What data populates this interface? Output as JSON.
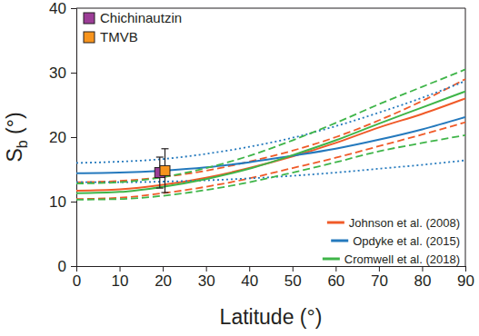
{
  "chart_data": {
    "type": "line",
    "x_label": "Latitude (°)",
    "y_label": "Sb (°)",
    "x": [
      0,
      10,
      20,
      30,
      40,
      50,
      60,
      70,
      80,
      90
    ],
    "xlim": [
      0,
      90
    ],
    "xticks": [
      0,
      10,
      20,
      30,
      40,
      50,
      60,
      70,
      80,
      90
    ],
    "ylim": [
      0,
      40
    ],
    "yticks": [
      0,
      10,
      20,
      30,
      40
    ],
    "grid": false,
    "legend": "lower right",
    "series": [
      {
        "name": "Johnson et al. (2008)",
        "color": "#f05a28",
        "line_style": "solid",
        "values": [
          11.7,
          11.9,
          12.6,
          13.7,
          15.2,
          17.0,
          19.1,
          21.5,
          23.6,
          26.0
        ]
      },
      {
        "color": "#f05a28",
        "line_style": "dashed",
        "values": [
          13.0,
          13.2,
          13.8,
          14.8,
          16.2,
          17.9,
          20.0,
          22.6,
          25.6,
          29.0
        ]
      },
      {
        "color": "#f05a28",
        "line_style": "dashed",
        "values": [
          10.4,
          10.6,
          11.3,
          12.3,
          13.6,
          15.2,
          16.8,
          18.6,
          20.4,
          22.3
        ]
      },
      {
        "name": "Opdyke et al. (2015)",
        "color": "#2479bd",
        "line_style": "solid",
        "values": [
          14.4,
          14.5,
          14.8,
          15.3,
          16.1,
          17.1,
          18.2,
          19.6,
          21.2,
          23.1
        ]
      },
      {
        "color": "#2479bd",
        "line_style": "dotted",
        "values": [
          16.0,
          16.2,
          16.6,
          17.4,
          18.5,
          19.9,
          21.7,
          23.8,
          26.1,
          28.7
        ]
      },
      {
        "color": "#2479bd",
        "line_style": "dotted",
        "values": [
          13.0,
          13.0,
          13.1,
          13.3,
          13.6,
          14.0,
          14.5,
          15.1,
          15.7,
          16.4
        ]
      },
      {
        "name": "Cromwell et al. (2018)",
        "color": "#3fb549",
        "line_style": "solid",
        "values": [
          11.3,
          11.5,
          12.3,
          13.5,
          15.1,
          17.2,
          19.5,
          22.1,
          24.6,
          27.1
        ]
      },
      {
        "color": "#3fb549",
        "line_style": "dashed",
        "values": [
          12.8,
          13.0,
          13.8,
          15.2,
          17.1,
          19.5,
          22.2,
          25.1,
          27.8,
          30.5
        ]
      },
      {
        "color": "#3fb549",
        "line_style": "dashed",
        "values": [
          10.3,
          10.4,
          10.9,
          11.8,
          13.0,
          14.5,
          16.1,
          17.8,
          19.1,
          20.3
        ]
      },
      {
        "name": "Chichinautzin",
        "type": "scatter",
        "marker": "square",
        "color": "#9c3d97",
        "x": [
          19.3
        ],
        "values": [
          14.5
        ],
        "errors": [
          2.4
        ]
      },
      {
        "name": "TMVB",
        "type": "scatter",
        "marker": "square",
        "color": "#f7941d",
        "x": [
          20.5
        ],
        "values": [
          14.8
        ],
        "errors": [
          3.4
        ]
      }
    ]
  }
}
